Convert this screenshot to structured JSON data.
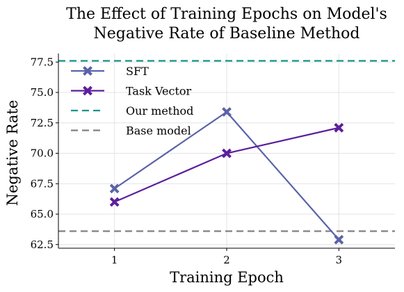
{
  "chart_data": {
    "type": "line",
    "title_lines": [
      "The Effect of Training Epochs on Model's",
      "Negative Rate of Baseline Method"
    ],
    "xlabel": "Training Epoch",
    "ylabel": "Negative Rate",
    "x": [
      1,
      2,
      3
    ],
    "x_ticks": [
      "1",
      "2",
      "3"
    ],
    "xlim": [
      0.5,
      3.5
    ],
    "ylim": [
      62.2,
      78.2
    ],
    "y_ticks": [
      "62.5",
      "65.0",
      "67.5",
      "70.0",
      "72.5",
      "75.0",
      "77.5"
    ],
    "grid": true,
    "legend_position": "top-left",
    "series": [
      {
        "name": "SFT",
        "values": [
          67.1,
          73.4,
          62.9
        ],
        "color": "#5b63a8",
        "marker": "x"
      },
      {
        "name": "Task Vector",
        "values": [
          66.0,
          70.0,
          72.1
        ],
        "color": "#5c1f9c",
        "marker": "x"
      }
    ],
    "reference_lines": [
      {
        "name": "Our method",
        "value": 77.6,
        "color": "#13948c",
        "style": "dashed"
      },
      {
        "name": "Base model",
        "value": 63.6,
        "color": "#808080",
        "style": "dashed"
      }
    ]
  }
}
